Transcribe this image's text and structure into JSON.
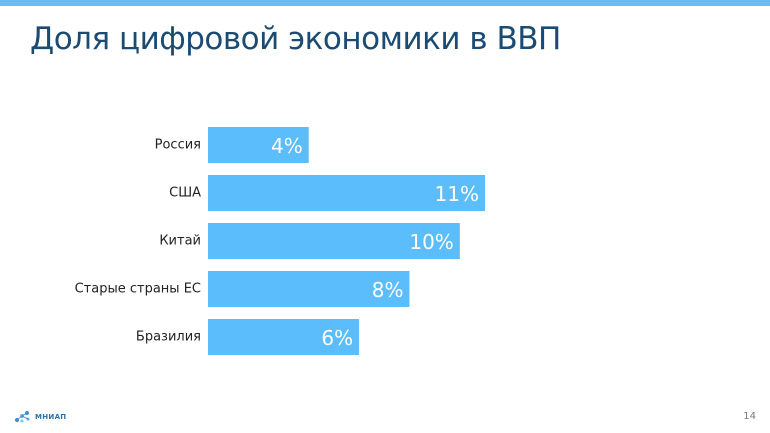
{
  "slide": {
    "title": "Доля цифровой экономики в ВВП",
    "page_number": "14",
    "logo_text": "МНИАП"
  },
  "colors": {
    "top_bar": "#69bdf6",
    "bar": "#5cbdfd",
    "title": "#1b4a73"
  },
  "chart_data": {
    "type": "bar",
    "orientation": "horizontal",
    "categories": [
      "Россия",
      "США",
      "Китай",
      "Старые страны ЕС",
      "Бразилия"
    ],
    "values": [
      4,
      11,
      10,
      8,
      6
    ],
    "value_labels": [
      "4%",
      "11%",
      "10%",
      "8%",
      "6%"
    ],
    "unit": "%",
    "title": "",
    "xlabel": "",
    "ylabel": "",
    "xlim": [
      0,
      11
    ],
    "grid": false,
    "legend": "none"
  }
}
